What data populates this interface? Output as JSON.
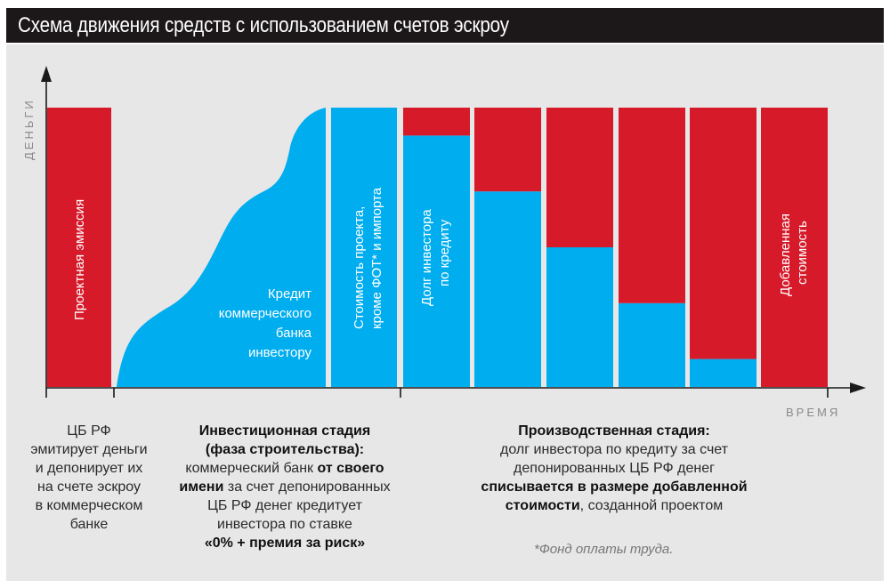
{
  "title": "Схема движения средств с использованием счетов эскроу",
  "colors": {
    "red": "#d61a2a",
    "blue": "#00adef",
    "title_bg": "#1c1718",
    "panel_bg": "#e7e7e8",
    "axis": "#1a1a1a"
  },
  "axes": {
    "y_label": "ДЕНЬГИ",
    "x_label": "ВРЕМЯ"
  },
  "chart_data": {
    "type": "bar",
    "title": "Схема движения средств с использованием счетов эскроу",
    "xlabel": "ВРЕМЯ",
    "ylabel": "ДЕНЬГИ",
    "ylim": [
      0,
      1
    ],
    "grid": false,
    "stages": [
      "emission",
      "investment",
      "production"
    ],
    "emission_bar": {
      "label": "Проектная эмиссия",
      "value": 1.0,
      "color": "red"
    },
    "credit_curve": {
      "label_lines": [
        "Кредит",
        "коммерческого",
        "банка",
        "инвестору"
      ],
      "start": 0.0,
      "end": 1.0
    },
    "project_cost_bar": {
      "label_lines": [
        "Стоимость проекта,",
        "кроме ФОТ* и импорта"
      ],
      "value": 1.0,
      "color": "blue"
    },
    "production_bars": {
      "categories": [
        "1",
        "2",
        "3",
        "4",
        "5",
        "6"
      ],
      "series": [
        {
          "name": "Долг инвестора по кредиту",
          "color": "blue",
          "values": [
            0.9,
            0.7,
            0.5,
            0.3,
            0.1,
            0.0
          ]
        },
        {
          "name": "Добавленная стоимость",
          "color": "red",
          "values": [
            0.1,
            0.3,
            0.5,
            0.7,
            0.9,
            1.0
          ]
        }
      ],
      "labels": {
        "debt": [
          "Долг инвестора",
          "по кредиту"
        ],
        "added_value": [
          "Добавленная",
          "стоимость"
        ]
      }
    }
  },
  "notes": {
    "emission": {
      "lines": [
        "ЦБ РФ",
        "эмитирует деньги",
        "и депонирует их",
        "на счете эскроу",
        "в коммерческом",
        "банке"
      ]
    },
    "investment": {
      "heading1": "Инвестиционная стадия",
      "heading2": "(фаза строительства):",
      "t1": "коммерческий банк ",
      "b1": "от своего",
      "b2": "имени",
      "t2": " за счет депонированных",
      "t3": "ЦБ РФ денег кредитует",
      "t4": "инвестора по ставке",
      "b3": "«0% + премия за риск»"
    },
    "production": {
      "heading": "Производственная стадия:",
      "t1": "долг инвестора по кредиту за счет",
      "t2": "депонированных ЦБ РФ денег",
      "b1": "списывается в размере добавленной",
      "b2": "стоимости",
      "t3": ", созданной проектом"
    }
  },
  "footnote": "*Фонд оплаты труда."
}
